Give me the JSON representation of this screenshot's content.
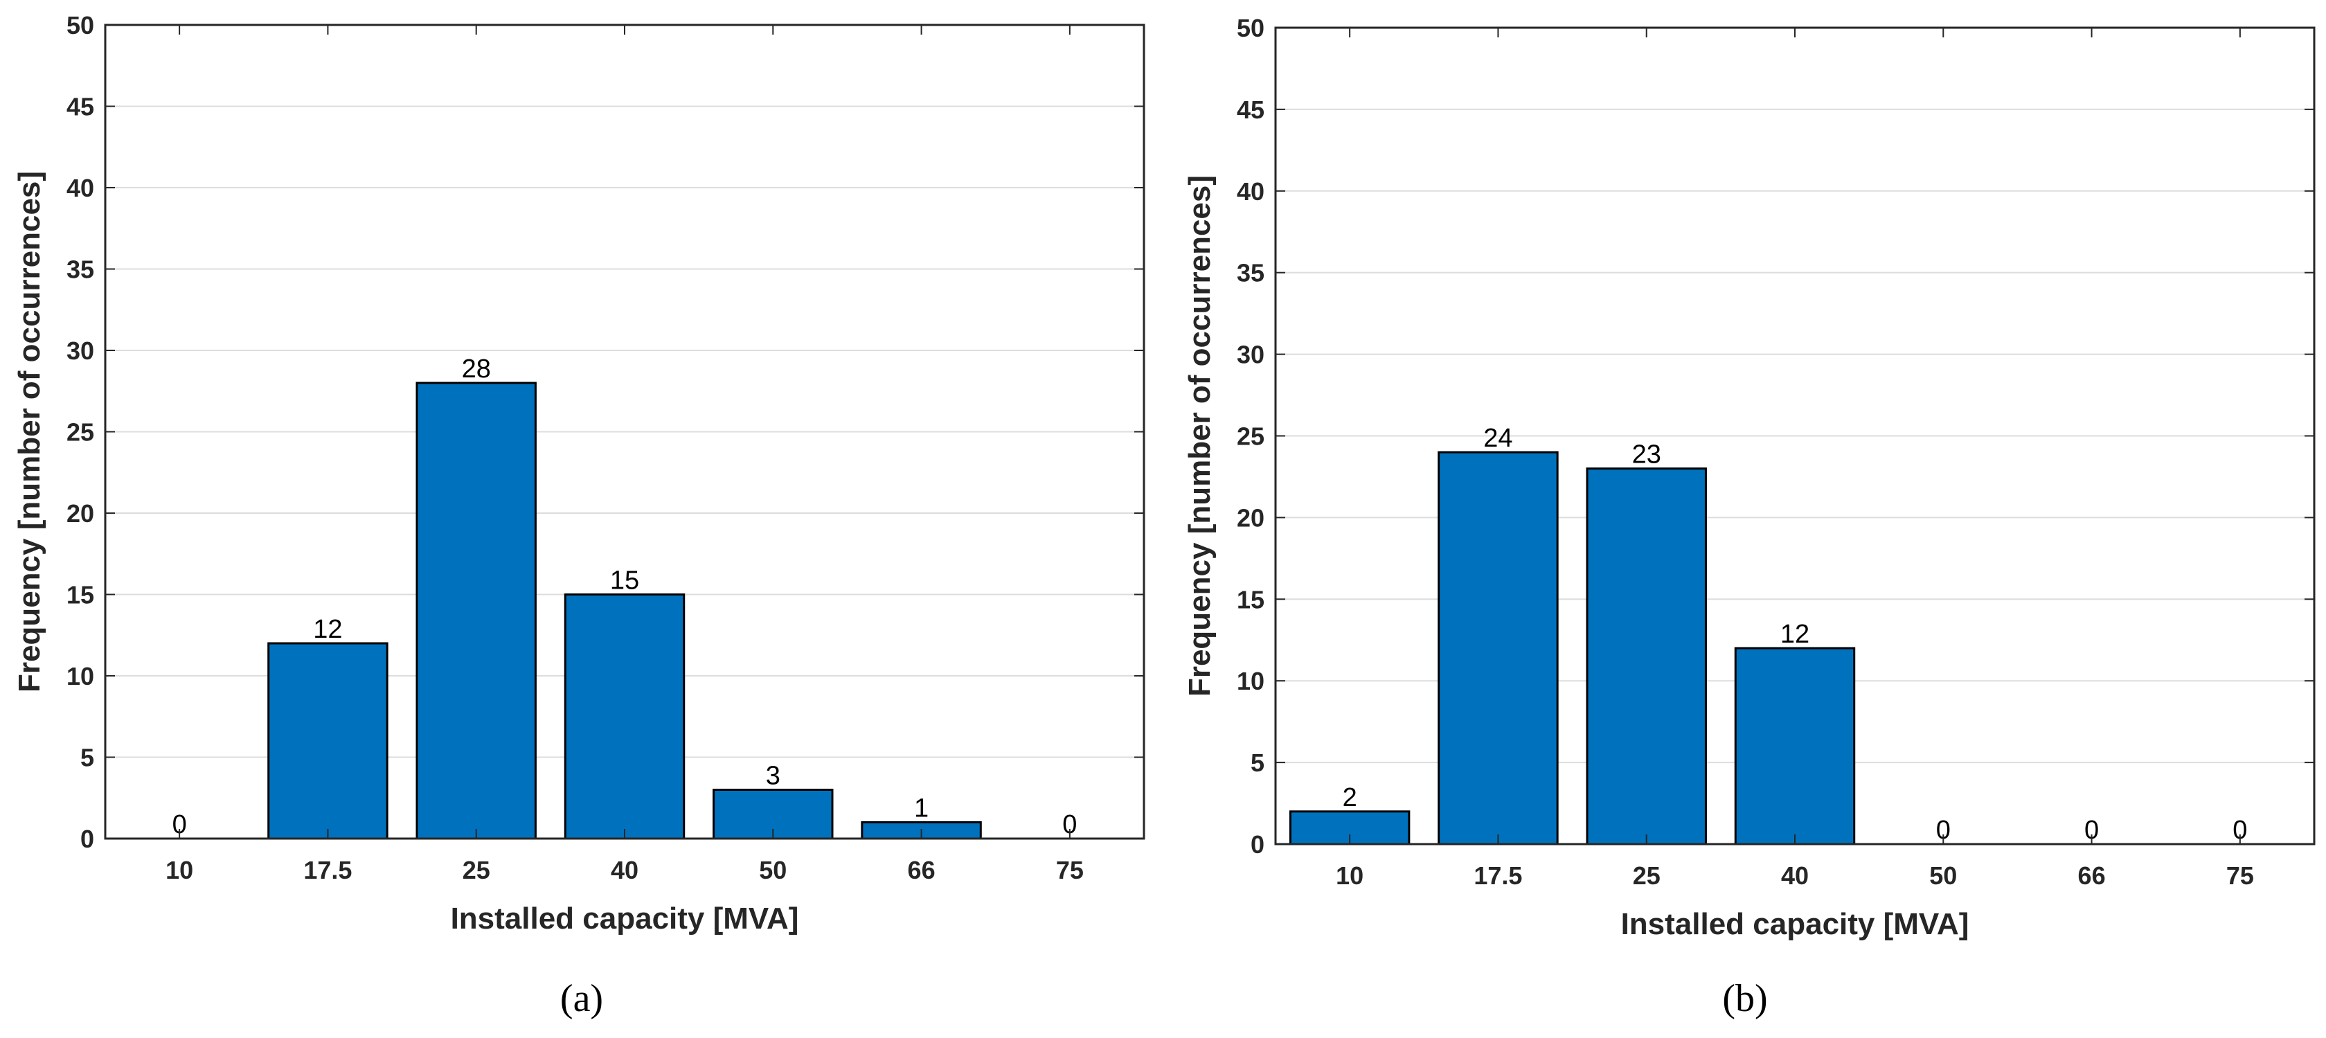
{
  "colors": {
    "bar": "#0072bd",
    "grid": "#dddddd",
    "axis": "#262626"
  },
  "chart_data": [
    {
      "type": "bar",
      "panel_label": "(a)",
      "categories": [
        "10",
        "17.5",
        "25",
        "40",
        "50",
        "66",
        "75"
      ],
      "values": [
        0,
        12,
        28,
        15,
        3,
        1,
        0
      ],
      "data_labels": [
        "0",
        "12",
        "28",
        "15",
        "3",
        "1",
        "0"
      ],
      "xlabel": "Installed capacity [MVA]",
      "ylabel": "Frequency [number of occurrences]",
      "ylim": [
        0,
        50
      ],
      "yticks": [
        0,
        5,
        10,
        15,
        20,
        25,
        30,
        35,
        40,
        45,
        50
      ],
      "grid": true
    },
    {
      "type": "bar",
      "panel_label": "(b)",
      "categories": [
        "10",
        "17.5",
        "25",
        "40",
        "50",
        "66",
        "75"
      ],
      "values": [
        2,
        24,
        23,
        12,
        0,
        0,
        0
      ],
      "data_labels": [
        "2",
        "24",
        "23",
        "12",
        "0",
        "0",
        "0"
      ],
      "xlabel": "Installed capacity [MVA]",
      "ylabel": "Frequency [number of occurrences]",
      "ylim": [
        0,
        50
      ],
      "yticks": [
        0,
        5,
        10,
        15,
        20,
        25,
        30,
        35,
        40,
        45,
        50
      ],
      "grid": true
    }
  ]
}
